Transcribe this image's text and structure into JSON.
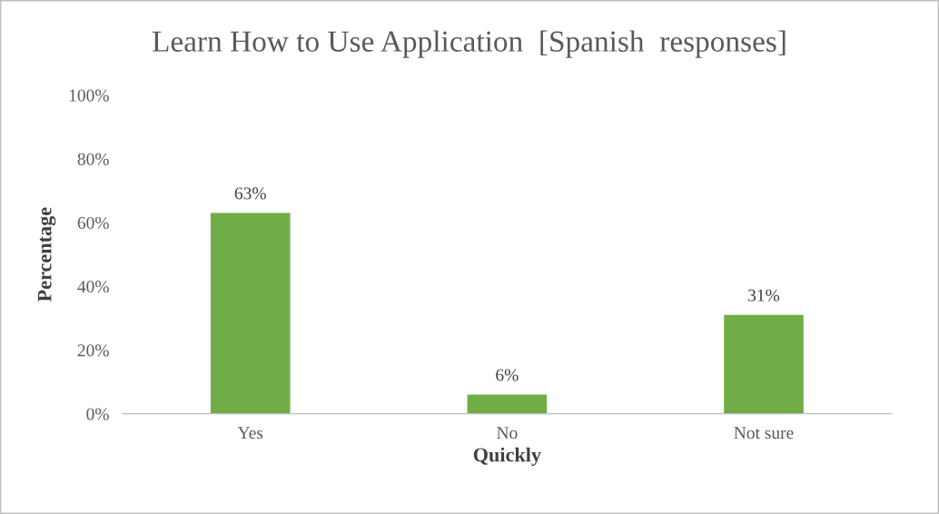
{
  "chart_data": {
    "type": "bar",
    "title": "Learn How to Use Application  [Spanish  responses]",
    "xlabel": "Quickly",
    "ylabel": "Percentage",
    "categories": [
      "Yes",
      "No",
      "Not sure"
    ],
    "values": [
      63,
      6,
      31
    ],
    "color": "#70ad47",
    "value_labels": [
      "63%",
      "6%",
      "31%"
    ],
    "ylim": [
      0,
      100
    ],
    "yticks": [
      {
        "value": 0,
        "label": "0%"
      },
      {
        "value": 20,
        "label": "20%"
      },
      {
        "value": 40,
        "label": "40%"
      },
      {
        "value": 60,
        "label": "60%"
      },
      {
        "value": 80,
        "label": "80%"
      },
      {
        "value": 100,
        "label": "100%"
      }
    ],
    "grid": false
  }
}
